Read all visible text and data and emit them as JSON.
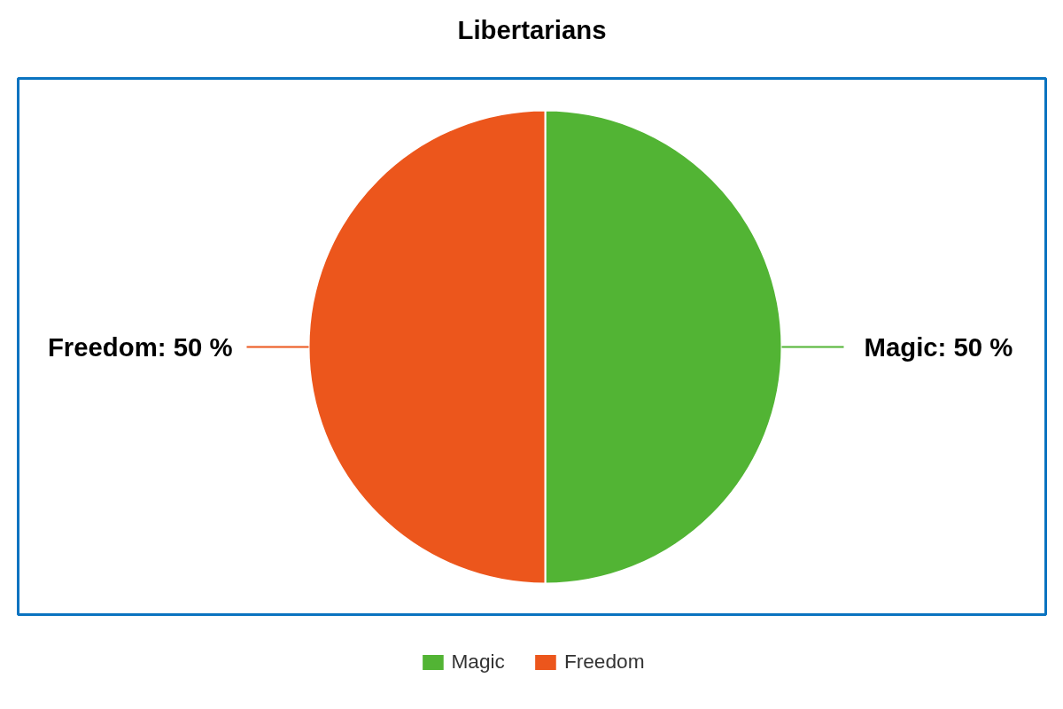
{
  "chart_data": {
    "type": "pie",
    "title": "Libertarians",
    "categories": [
      "Magic",
      "Freedom"
    ],
    "values": [
      50,
      50
    ],
    "colors": [
      "#52b434",
      "#ec561c"
    ],
    "value_labels": [
      "Magic: 50 %",
      "Freedom: 50 %"
    ],
    "legend": "bottom"
  }
}
